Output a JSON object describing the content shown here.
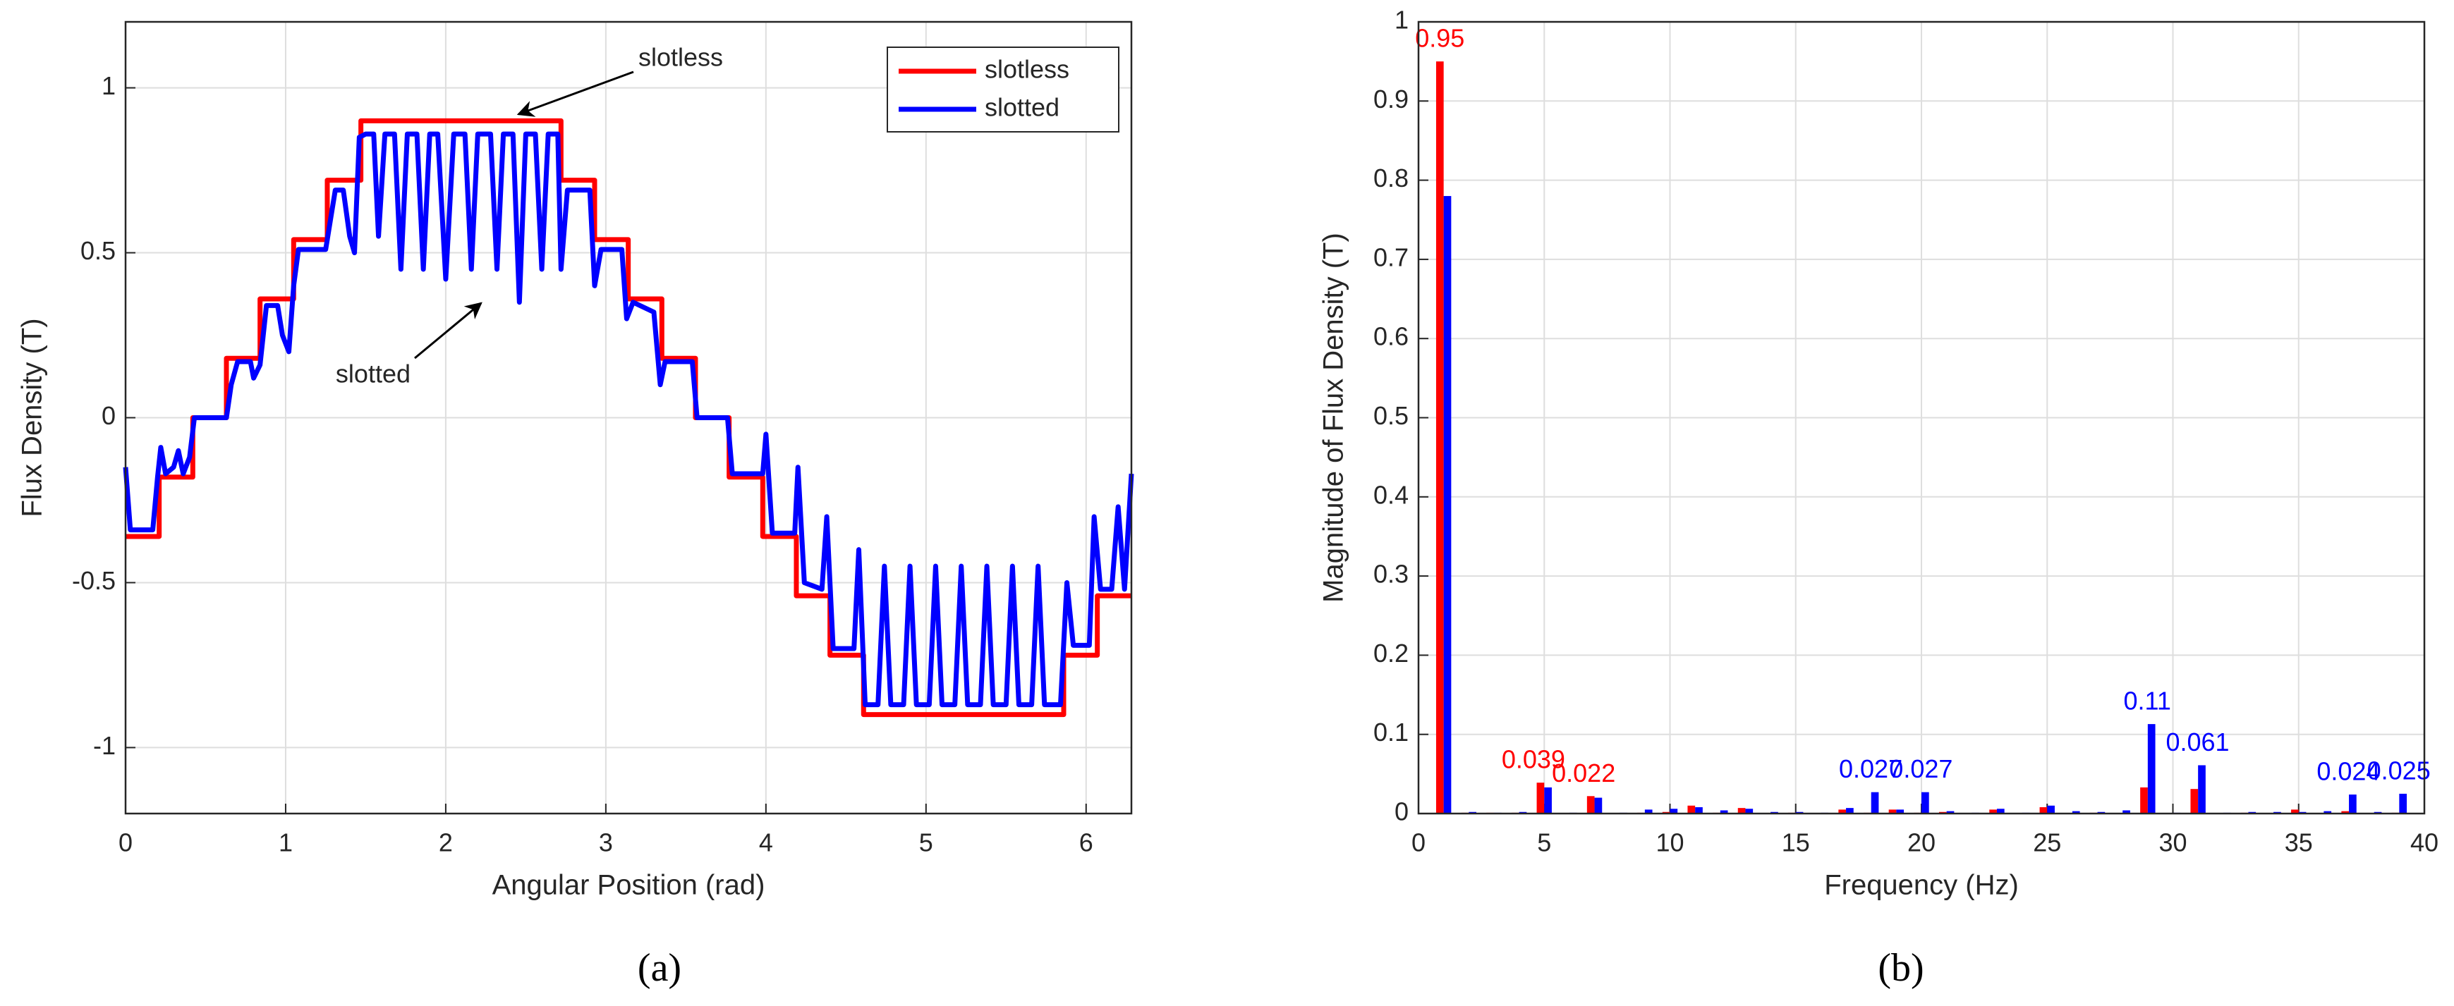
{
  "chart_data": [
    {
      "type": "line",
      "label": "(a)",
      "xlabel": "Angular Position (rad)",
      "ylabel": "Flux Density (T)",
      "xlim": [
        0,
        6.283
      ],
      "xticks": [
        0,
        1,
        2,
        3,
        4,
        5,
        6
      ],
      "ylim": [
        -1.2,
        1.2
      ],
      "yticks": [
        -1,
        -0.5,
        0,
        0.5,
        1
      ],
      "grid": true,
      "legend": "upper right",
      "annotations": [
        {
          "text": "slotless"
        },
        {
          "text": "slotted"
        }
      ],
      "series": [
        {
          "name": "slotless",
          "color": "#ff0000",
          "x": [
            0,
            0.21,
            0.21,
            0.42,
            0.42,
            0.63,
            0.63,
            0.84,
            0.84,
            1.05,
            1.05,
            1.26,
            1.26,
            1.47,
            1.47,
            2.72,
            2.72,
            2.93,
            2.93,
            3.14,
            3.14,
            3.35,
            3.35,
            3.56,
            3.56,
            3.77,
            3.77,
            3.98,
            3.98,
            4.19,
            4.19,
            4.4,
            4.4,
            4.61,
            4.61,
            5.86,
            5.86,
            6.07,
            6.07,
            6.283
          ],
          "values": [
            -0.36,
            -0.36,
            -0.18,
            -0.18,
            0,
            0,
            0.18,
            0.18,
            0.36,
            0.36,
            0.54,
            0.54,
            0.72,
            0.72,
            0.9,
            0.9,
            0.72,
            0.72,
            0.54,
            0.54,
            0.36,
            0.36,
            0.18,
            0.18,
            0,
            0,
            -0.18,
            -0.18,
            -0.36,
            -0.36,
            -0.54,
            -0.54,
            -0.72,
            -0.72,
            -0.9,
            -0.9,
            -0.72,
            -0.72,
            -0.54,
            -0.54
          ]
        },
        {
          "name": "slotted",
          "color": "#0000ff",
          "x": [
            0,
            0.03,
            0.17,
            0.2,
            0.22,
            0.25,
            0.3,
            0.33,
            0.36,
            0.4,
            0.43,
            0.63,
            0.66,
            0.7,
            0.78,
            0.8,
            0.84,
            0.88,
            0.95,
            0.98,
            1.02,
            1.05,
            1.08,
            1.25,
            1.28,
            1.31,
            1.36,
            1.4,
            1.43,
            1.46,
            1.5,
            1.55,
            1.58,
            1.62,
            1.68,
            1.72,
            1.76,
            1.82,
            1.86,
            1.9,
            1.95,
            2.0,
            2.05,
            2.12,
            2.16,
            2.2,
            2.28,
            2.32,
            2.36,
            2.42,
            2.46,
            2.5,
            2.56,
            2.6,
            2.64,
            2.7,
            2.72,
            2.76,
            2.9,
            2.93,
            2.97,
            3.1,
            3.13,
            3.17,
            3.3,
            3.34,
            3.37,
            3.54,
            3.57,
            3.76,
            3.79,
            3.98,
            4.0,
            4.04,
            4.18,
            4.2,
            4.24,
            4.35,
            4.38,
            4.42,
            4.55,
            4.58,
            4.62,
            4.7,
            4.74,
            4.78,
            4.86,
            4.9,
            4.94,
            5.02,
            5.06,
            5.1,
            5.18,
            5.22,
            5.26,
            5.34,
            5.38,
            5.42,
            5.5,
            5.54,
            5.58,
            5.66,
            5.7,
            5.74,
            5.84,
            5.88,
            5.92,
            6.02,
            6.05,
            6.09,
            6.16,
            6.2,
            6.24,
            6.283
          ],
          "values": [
            -0.15,
            -0.34,
            -0.34,
            -0.18,
            -0.09,
            -0.17,
            -0.15,
            -0.1,
            -0.17,
            -0.12,
            0,
            0,
            0.1,
            0.17,
            0.17,
            0.12,
            0.16,
            0.34,
            0.34,
            0.25,
            0.2,
            0.4,
            0.51,
            0.51,
            0.6,
            0.69,
            0.69,
            0.55,
            0.5,
            0.85,
            0.86,
            0.86,
            0.55,
            0.86,
            0.86,
            0.45,
            0.86,
            0.86,
            0.45,
            0.86,
            0.86,
            0.42,
            0.86,
            0.86,
            0.45,
            0.86,
            0.86,
            0.45,
            0.86,
            0.86,
            0.35,
            0.86,
            0.86,
            0.45,
            0.86,
            0.86,
            0.45,
            0.69,
            0.69,
            0.4,
            0.51,
            0.51,
            0.3,
            0.35,
            0.32,
            0.1,
            0.17,
            0.17,
            0,
            0,
            -0.17,
            -0.17,
            -0.05,
            -0.35,
            -0.35,
            -0.15,
            -0.5,
            -0.52,
            -0.3,
            -0.7,
            -0.7,
            -0.4,
            -0.87,
            -0.87,
            -0.45,
            -0.87,
            -0.87,
            -0.45,
            -0.87,
            -0.87,
            -0.45,
            -0.87,
            -0.87,
            -0.45,
            -0.87,
            -0.87,
            -0.45,
            -0.87,
            -0.87,
            -0.45,
            -0.87,
            -0.87,
            -0.45,
            -0.87,
            -0.87,
            -0.5,
            -0.69,
            -0.69,
            -0.3,
            -0.52,
            -0.52,
            -0.27,
            -0.52,
            -0.17
          ]
        }
      ]
    },
    {
      "type": "bar",
      "label": "(b)",
      "xlabel": "Frequency (Hz)",
      "ylabel": "Magnitude of Flux Density (T)",
      "xlim": [
        0,
        40
      ],
      "xticks": [
        0,
        5,
        10,
        15,
        20,
        25,
        30,
        35,
        40
      ],
      "ylim": [
        0,
        1
      ],
      "yticks": [
        0,
        0.1,
        0.2,
        0.3,
        0.4,
        0.5,
        0.6,
        0.7,
        0.8,
        0.9,
        1
      ],
      "grid": true,
      "x": [
        1,
        2,
        3,
        4,
        5,
        6,
        7,
        8,
        9,
        10,
        11,
        12,
        13,
        14,
        15,
        16,
        17,
        18,
        19,
        20,
        21,
        22,
        23,
        24,
        25,
        26,
        27,
        28,
        29,
        30,
        31,
        32,
        33,
        34,
        35,
        36,
        37,
        38,
        39
      ],
      "series": [
        {
          "name": "slotless",
          "color": "#ff0000",
          "values": [
            0.95,
            0.001,
            0.001,
            0.001,
            0.039,
            0,
            0.022,
            0,
            0.001,
            0.002,
            0.01,
            0.001,
            0.007,
            0,
            0.001,
            0,
            0.005,
            0.001,
            0.005,
            0.001,
            0.002,
            0,
            0.005,
            0,
            0.008,
            0,
            0.001,
            0,
            0.033,
            0,
            0.031,
            0,
            0.001,
            0,
            0.005,
            0,
            0.003,
            0,
            0.001
          ],
          "value_labels": [
            "0.95",
            null,
            null,
            null,
            "0.039",
            null,
            "0.022",
            null,
            null,
            null,
            null,
            null,
            null,
            null,
            null,
            null,
            null,
            null,
            null,
            null,
            null,
            null,
            null,
            null,
            null,
            null,
            null,
            null,
            null,
            null,
            null,
            null,
            null,
            null,
            null,
            null,
            null,
            null,
            null
          ]
        },
        {
          "name": "slotted",
          "color": "#0000ff",
          "values": [
            0.78,
            0.002,
            0.001,
            0.002,
            0.033,
            0.001,
            0.02,
            0.001,
            0.005,
            0.006,
            0.008,
            0.004,
            0.006,
            0.002,
            0.002,
            0.001,
            0.007,
            0.027,
            0.005,
            0.027,
            0.003,
            0.001,
            0.006,
            0.001,
            0.01,
            0.003,
            0.002,
            0.004,
            0.113,
            0.001,
            0.061,
            0.001,
            0.002,
            0.002,
            0.002,
            0.003,
            0.024,
            0.002,
            0.025
          ],
          "value_labels": [
            null,
            null,
            null,
            null,
            null,
            null,
            null,
            null,
            null,
            null,
            null,
            null,
            null,
            null,
            null,
            null,
            null,
            "0.027",
            null,
            "0.027",
            null,
            null,
            null,
            null,
            null,
            null,
            null,
            null,
            "0.11",
            null,
            "0.061",
            null,
            null,
            null,
            null,
            null,
            "0.024",
            null,
            "0.025"
          ]
        }
      ]
    }
  ]
}
